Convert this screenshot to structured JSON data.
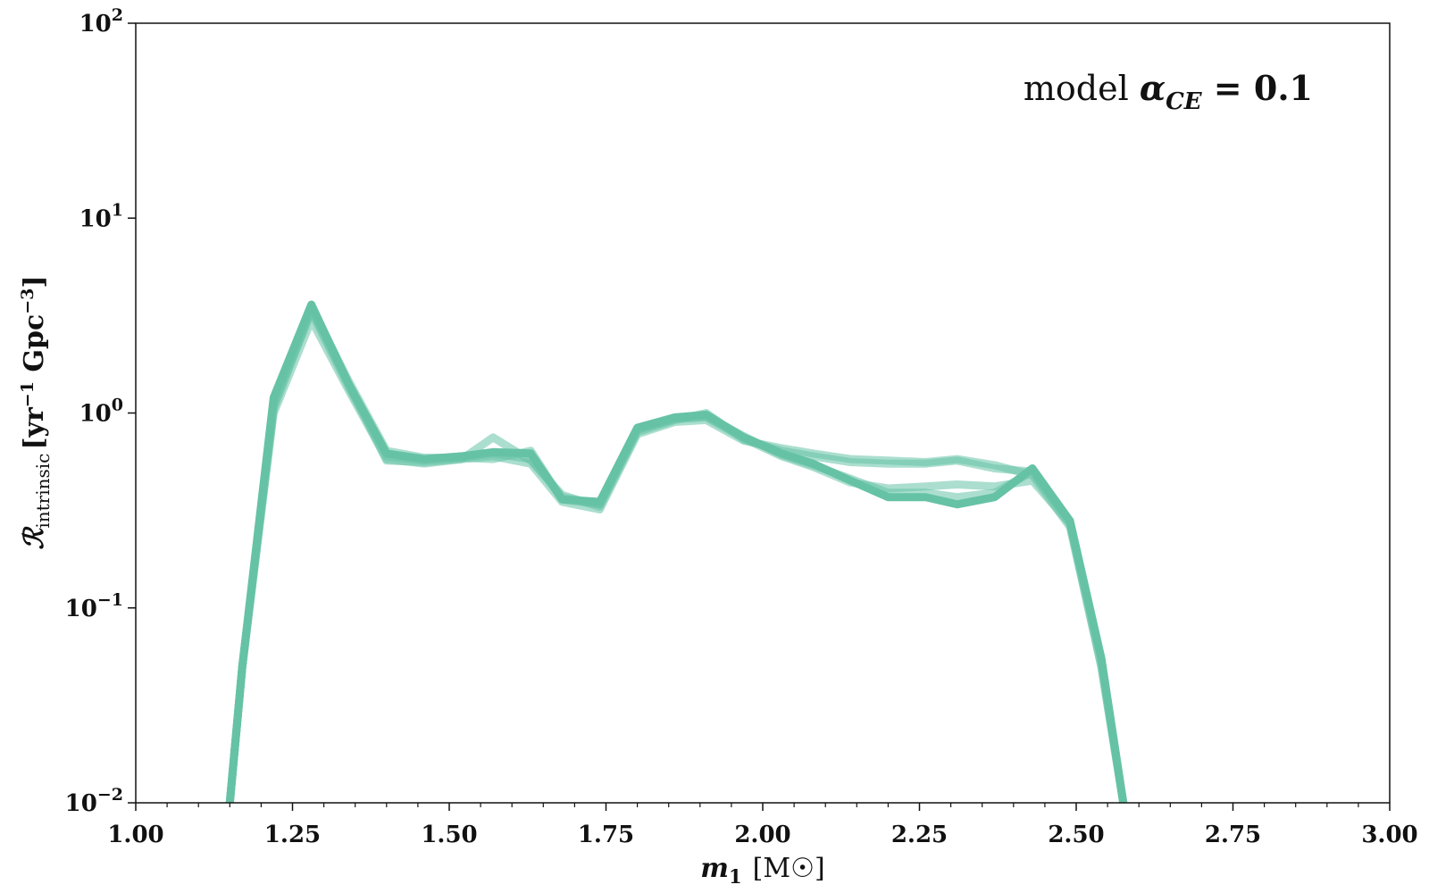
{
  "chart_data": {
    "type": "line",
    "xlabel": {
      "var": "m",
      "sub": "1",
      "unit": "[M☉]"
    },
    "ylabel": {
      "var": "ℛ",
      "sub": "intrinsic",
      "unit_a": "[yr",
      "exp_a": "−1",
      "unit_b": " Gpc",
      "exp_b": "−3",
      "close": "]"
    },
    "xlim": [
      1.0,
      3.0
    ],
    "ylim": [
      0.01,
      100
    ],
    "yscale": "log",
    "xticks": [
      "1.00",
      "1.25",
      "1.50",
      "1.75",
      "2.00",
      "2.25",
      "2.50",
      "2.75",
      "3.00"
    ],
    "yticks": [
      {
        "base": "10",
        "exp": "−2",
        "value": 0.01
      },
      {
        "base": "10",
        "exp": "−1",
        "value": 0.1
      },
      {
        "base": "10",
        "exp": "0",
        "value": 1
      },
      {
        "base": "10",
        "exp": "1",
        "value": 10
      },
      {
        "base": "10",
        "exp": "2",
        "value": 100
      }
    ],
    "annotation": {
      "prefix": "model ",
      "symbol": "α",
      "sub": "CE",
      "suffix": " = 0.1"
    },
    "line_color": "#66c2a5",
    "series": [
      {
        "x": [
          1.15,
          1.17,
          1.22,
          1.28,
          1.34,
          1.4,
          1.46,
          1.52,
          1.57,
          1.63,
          1.68,
          1.74,
          1.8,
          1.86,
          1.91,
          1.97,
          2.03,
          2.08,
          2.14,
          2.2,
          2.26,
          2.31,
          2.37,
          2.43,
          2.49,
          2.54,
          2.575
        ],
        "y": [
          0.01,
          0.05,
          1.2,
          3.6,
          1.4,
          0.62,
          0.58,
          0.6,
          0.63,
          0.62,
          0.36,
          0.35,
          0.84,
          0.95,
          0.98,
          0.75,
          0.62,
          0.55,
          0.45,
          0.37,
          0.37,
          0.34,
          0.37,
          0.52,
          0.28,
          0.055,
          0.01
        ]
      },
      {
        "x": [
          1.15,
          1.17,
          1.22,
          1.28,
          1.34,
          1.4,
          1.46,
          1.52,
          1.57,
          1.63,
          1.68,
          1.74,
          1.8,
          1.86,
          1.91,
          1.97,
          2.03,
          2.08,
          2.14,
          2.2,
          2.26,
          2.31,
          2.37,
          2.43,
          2.49,
          2.54,
          2.575
        ],
        "y": [
          0.01,
          0.05,
          1.0,
          3.0,
          1.3,
          0.58,
          0.55,
          0.58,
          0.6,
          0.55,
          0.35,
          0.32,
          0.78,
          0.9,
          0.92,
          0.72,
          0.66,
          0.62,
          0.58,
          0.57,
          0.56,
          0.58,
          0.54,
          0.48,
          0.26,
          0.05,
          0.01
        ]
      },
      {
        "x": [
          1.15,
          1.17,
          1.22,
          1.28,
          1.34,
          1.4,
          1.46,
          1.52,
          1.57,
          1.63,
          1.68,
          1.74,
          1.8,
          1.86,
          1.91,
          1.97,
          2.03,
          2.08,
          2.14,
          2.2,
          2.26,
          2.31,
          2.37,
          2.43,
          2.49,
          2.54,
          2.575
        ],
        "y": [
          0.01,
          0.05,
          1.1,
          3.3,
          1.35,
          0.6,
          0.57,
          0.59,
          0.62,
          0.58,
          0.37,
          0.34,
          0.82,
          0.93,
          0.95,
          0.74,
          0.6,
          0.53,
          0.44,
          0.41,
          0.42,
          0.43,
          0.42,
          0.45,
          0.27,
          0.055,
          0.01
        ]
      },
      {
        "x": [
          1.15,
          1.17,
          1.22,
          1.28,
          1.34,
          1.4,
          1.46,
          1.52,
          1.57,
          1.63,
          1.68,
          1.74,
          1.8,
          1.86,
          1.91,
          1.97,
          2.03,
          2.08,
          2.14,
          2.2,
          2.26,
          2.31,
          2.37,
          2.43,
          2.49,
          2.54,
          2.575
        ],
        "y": [
          0.01,
          0.05,
          1.05,
          3.4,
          1.4,
          0.57,
          0.56,
          0.58,
          0.75,
          0.57,
          0.38,
          0.33,
          0.8,
          0.92,
          1.0,
          0.73,
          0.64,
          0.6,
          0.56,
          0.55,
          0.55,
          0.57,
          0.52,
          0.5,
          0.27,
          0.05,
          0.01
        ]
      },
      {
        "x": [
          1.15,
          1.17,
          1.22,
          1.28,
          1.34,
          1.4,
          1.46,
          1.52,
          1.57,
          1.63,
          1.68,
          1.74,
          1.8,
          1.86,
          1.91,
          1.97,
          2.03,
          2.08,
          2.14,
          2.2,
          2.26,
          2.31,
          2.37,
          2.43,
          2.49,
          2.54,
          2.575
        ],
        "y": [
          0.01,
          0.05,
          1.15,
          3.5,
          1.45,
          0.64,
          0.59,
          0.59,
          0.58,
          0.64,
          0.36,
          0.34,
          0.83,
          0.94,
          0.96,
          0.76,
          0.61,
          0.54,
          0.46,
          0.39,
          0.39,
          0.37,
          0.39,
          0.5,
          0.28,
          0.055,
          0.01
        ]
      }
    ]
  }
}
